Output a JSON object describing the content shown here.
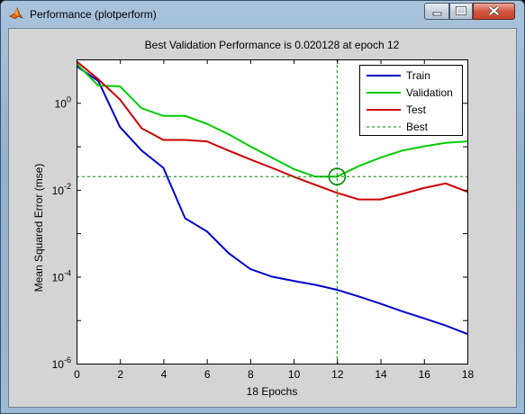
{
  "window": {
    "title": "Performance (plotperform)",
    "icon": "matlab-logo-icon",
    "controls": [
      "minimize-icon",
      "maximize-icon",
      "close-icon"
    ]
  },
  "chart_data": {
    "type": "line",
    "title": "Best Validation Performance is 0.020128 at epoch 12",
    "xlabel": "18 Epochs",
    "ylabel": "Mean Squared Error  (mse)",
    "xlim": [
      0,
      18
    ],
    "ylim": [
      1e-06,
      10
    ],
    "yscale": "log",
    "grid": false,
    "legend_position": "top-right",
    "x_ticks": [
      0,
      2,
      4,
      6,
      8,
      10,
      12,
      14,
      16,
      18
    ],
    "y_ticks": [
      {
        "value": 1,
        "base": "10",
        "exp": "0"
      },
      {
        "value": 0.01,
        "base": "10",
        "exp": "-2"
      },
      {
        "value": 0.0001,
        "base": "10",
        "exp": "-4"
      },
      {
        "value": 1e-06,
        "base": "10",
        "exp": "-6"
      }
    ],
    "series": [
      {
        "name": "Train",
        "color": "#0000cc",
        "x": [
          0,
          1,
          2,
          3,
          4,
          5,
          6,
          7,
          8,
          9,
          10,
          11,
          12,
          13,
          14,
          15,
          16,
          17,
          18
        ],
        "y": [
          7,
          3.2,
          0.28,
          0.08,
          0.032,
          0.0022,
          0.0011,
          0.00035,
          0.00015,
          0.0001,
          8e-05,
          6.5e-05,
          5e-05,
          3.5e-05,
          2.4e-05,
          1.6e-05,
          1.1e-05,
          7.5e-06,
          4.8e-06
        ]
      },
      {
        "name": "Validation",
        "color": "#00cc00",
        "x": [
          0,
          1,
          2,
          3,
          4,
          5,
          6,
          7,
          8,
          9,
          10,
          11,
          12,
          13,
          14,
          15,
          16,
          17,
          18
        ],
        "y": [
          8,
          2.5,
          2.4,
          0.75,
          0.5,
          0.5,
          0.33,
          0.19,
          0.1,
          0.055,
          0.03,
          0.02,
          0.02013,
          0.035,
          0.055,
          0.08,
          0.1,
          0.12,
          0.13
        ]
      },
      {
        "name": "Test",
        "color": "#cc0000",
        "x": [
          0,
          1,
          2,
          3,
          4,
          5,
          6,
          7,
          8,
          9,
          10,
          11,
          12,
          13,
          14,
          15,
          16,
          17,
          18
        ],
        "y": [
          9,
          3.5,
          1.2,
          0.26,
          0.14,
          0.14,
          0.13,
          0.08,
          0.05,
          0.032,
          0.02,
          0.013,
          0.0085,
          0.006,
          0.006,
          0.008,
          0.011,
          0.014,
          0.009
        ]
      }
    ],
    "best": {
      "name": "Best",
      "color": "#008800",
      "epoch": 12,
      "value": 0.020128
    }
  }
}
